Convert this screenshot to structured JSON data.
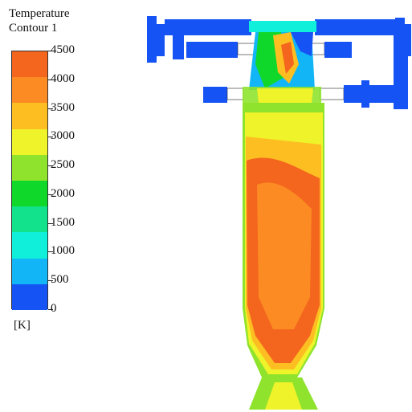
{
  "legend": {
    "title_line1": "Temperature",
    "title_line2": "Contour 1",
    "unit": "[K]",
    "levels": [
      "4500",
      "4000",
      "3500",
      "3000",
      "2500",
      "2000",
      "1500",
      "1000",
      "500",
      "0"
    ],
    "band_colors": [
      "#F4651E",
      "#FB8B22",
      "#FDBE22",
      "#EFF32A",
      "#8FE32D",
      "#10D82A",
      "#11E28B",
      "#0FEFD9",
      "#12B5F6",
      "#1553F4"
    ]
  },
  "colors": {
    "cold": "#1553F4",
    "mid": "#10D82A",
    "hot": "#F4651E",
    "outline": "#222222"
  }
}
